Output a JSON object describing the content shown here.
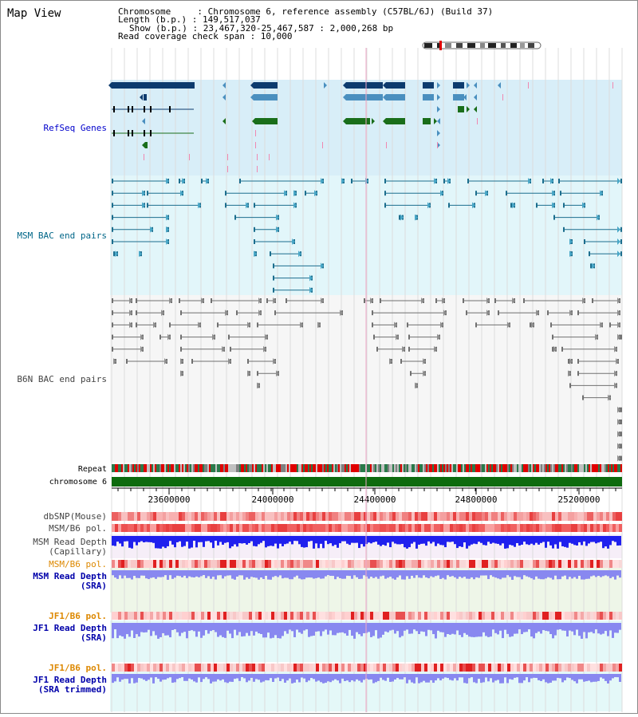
{
  "header": {
    "title": "Map View",
    "info": {
      "line1": "Chromosome     : Chromosome 6, reference assembly (C57BL/6J) (Build 37)",
      "line2": "Length (b.p.) : 149,517,037",
      "line3": "Show (b.p.) : 23,467,320-25,467,587 : 2,000,268 bp",
      "line4": "Read coverage check span : 10,000"
    }
  },
  "tracks": {
    "refseq": "RefSeq Genes",
    "msm_bac": "MSM BAC end pairs",
    "b6n_bac": "B6N BAC end pairs",
    "repeat": "Repeat",
    "chromosome": "chromosome 6",
    "dbsnp": "dbSNP(Mouse)",
    "msm_pol": "MSM/B6 pol.",
    "msm_depth_cap_1": "MSM Read Depth",
    "msm_depth_cap_2": "(Capillary)",
    "msm_pol_2": "MSM/B6 pol.",
    "msm_depth_sra_1": "MSM Read Depth",
    "msm_depth_sra_2": "(SRA)",
    "jf1_pol": "JF1/B6 pol.",
    "jf1_depth_sra_1": "JF1 Read Depth",
    "jf1_depth_sra_2": "(SRA)",
    "jf1_pol_2": "JF1/B6 pol.",
    "jf1_depth_trim_1": "JF1 Read Depth",
    "jf1_depth_trim_2": "(SRA trimmed)"
  },
  "axis": {
    "ticks": [
      "23600000",
      "24000000",
      "24400000",
      "24800000",
      "25200000"
    ]
  },
  "colors": {
    "refseq_bg": "#d8eef8",
    "msm_bg": "#e2f6fa",
    "b6n_bg": "#f6f6f6",
    "refseq_label": "#0000cc",
    "msm_label": "#006688",
    "b6n_label": "#444444",
    "pol_label": "#dd8800",
    "depth_label": "#0000aa",
    "gene_dark": "#0d3b6e",
    "gene_mid": "#4a8fbf",
    "gene_green": "#1a6e1a",
    "msm_pair": "#1c6e8e",
    "b6n_pair": "#707070",
    "chrom_green": "#0e6b0e",
    "depth_blue": "#2020ee",
    "depth_light": "#8888f0"
  }
}
